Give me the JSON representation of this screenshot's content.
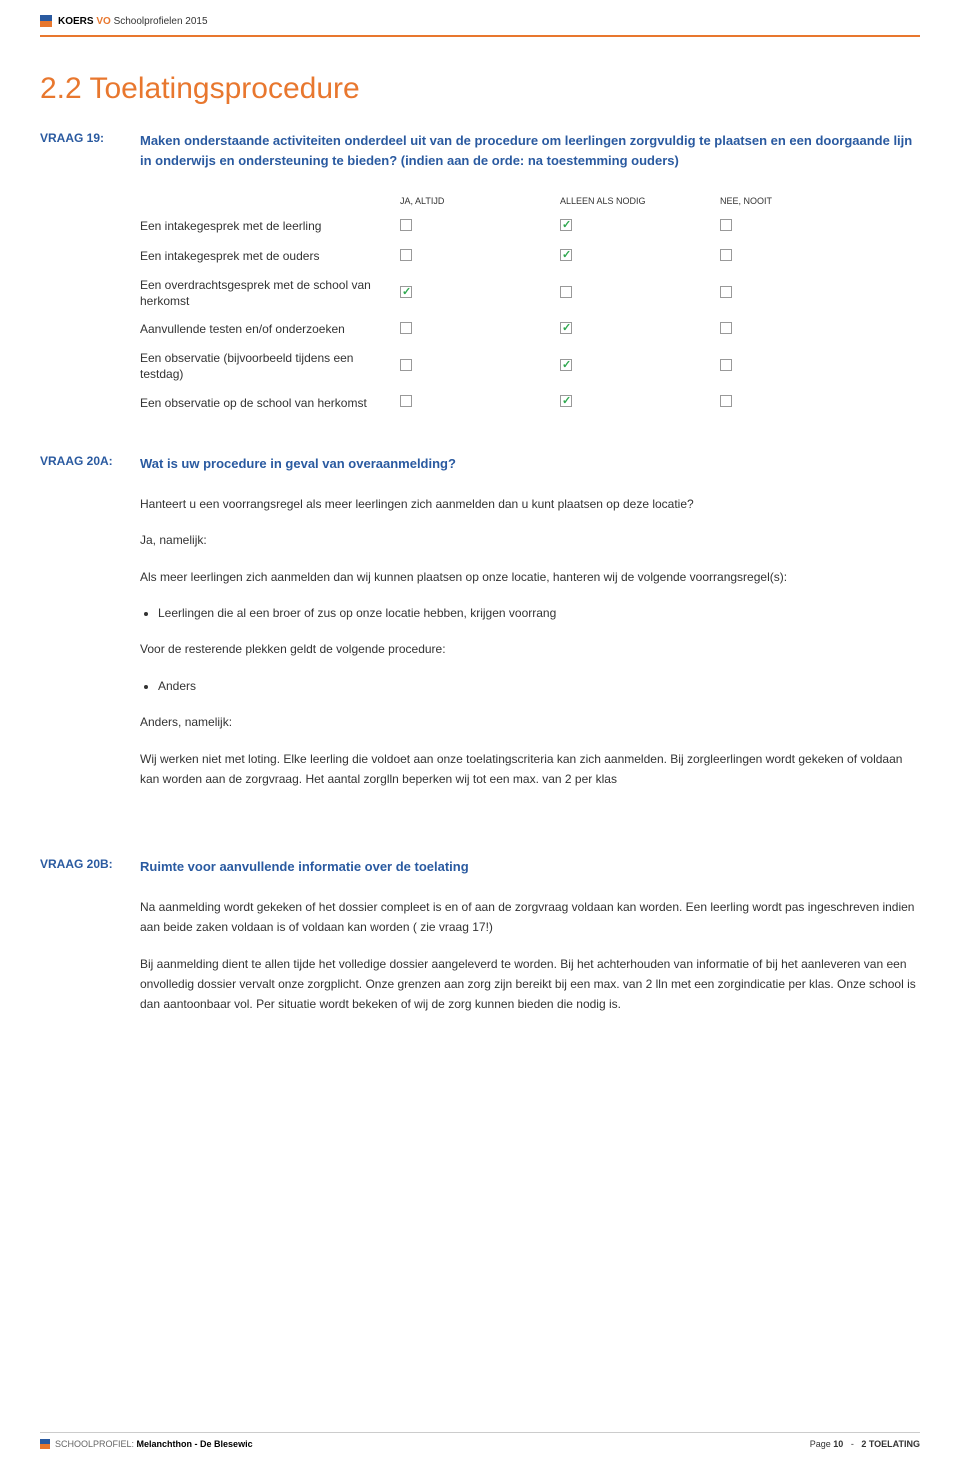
{
  "header": {
    "brand_black": "KOERS",
    "brand_orange": "VO",
    "brand_rest": "Schoolprofielen 2015",
    "icon_colors": {
      "top": "#2a5aa0",
      "bottom": "#e8772e"
    }
  },
  "section_title": "2.2 Toelatingsprocedure",
  "vraag19": {
    "label": "VRAAG 19:",
    "question": "Maken onderstaande activiteiten onderdeel uit van de procedure om leerlingen zorgvuldig te plaatsen en een doorgaande lijn in onderwijs en ondersteuning te bieden? (indien aan de orde: na toestemming ouders)",
    "columns": [
      "JA, ALTIJD",
      "ALLEEN ALS NODIG",
      "NEE, NOOIT"
    ],
    "rows": [
      {
        "label": "Een intakegesprek met de leerling",
        "checks": [
          false,
          true,
          false
        ]
      },
      {
        "label": "Een intakegesprek met de ouders",
        "checks": [
          false,
          true,
          false
        ]
      },
      {
        "label": "Een overdrachtsgesprek met de school van herkomst",
        "checks": [
          true,
          false,
          false
        ]
      },
      {
        "label": "Aanvullende testen en/of onderzoeken",
        "checks": [
          false,
          true,
          false
        ]
      },
      {
        "label": "Een observatie (bijvoorbeeld tijdens een testdag)",
        "checks": [
          false,
          true,
          false
        ]
      },
      {
        "label": "Een observatie op de school van herkomst",
        "checks": [
          false,
          true,
          false
        ]
      }
    ]
  },
  "vraag20a": {
    "label": "VRAAG 20A:",
    "question": "Wat is uw procedure in geval van overaanmelding?",
    "p1": "Hanteert u een voorrangsregel als meer leerlingen zich aanmelden dan u kunt plaatsen op deze locatie?",
    "p2": "Ja, namelijk:",
    "p3": "Als meer leerlingen zich aanmelden dan wij kunnen plaatsen op onze locatie, hanteren wij de volgende voorrangsregel(s):",
    "bullet1": "Leerlingen die al een broer of zus op onze locatie hebben, krijgen voorrang",
    "p4": "Voor de resterende plekken geldt de volgende procedure:",
    "bullet2": "Anders",
    "p5": "Anders, namelijk:",
    "p6": "Wij werken niet met loting. Elke leerling die voldoet aan onze toelatingscriteria kan zich aanmelden. Bij zorgleerlingen wordt gekeken of voldaan kan worden aan de zorgvraag. Het aantal zorglln  beperken wij tot een max. van 2 per klas"
  },
  "vraag20b": {
    "label": "VRAAG 20B:",
    "question": "Ruimte voor aanvullende informatie over de toelating",
    "p1": "Na aanmelding wordt gekeken of het dossier compleet is en of aan de zorgvraag voldaan kan worden. Een leerling wordt pas ingeschreven indien aan beide zaken voldaan is of voldaan kan worden ( zie vraag 17!)",
    "p2": "Bij aanmelding dient te allen tijde het volledige dossier aangeleverd te worden. Bij het achterhouden van informatie of bij het aanleveren van een onvolledig dossier vervalt onze zorgplicht. Onze grenzen aan zorg zijn bereikt bij een max. van 2 lln met een zorgindicatie per klas. Onze school is dan aantoonbaar vol. Per situatie wordt bekeken of wij de zorg kunnen bieden die nodig is."
  },
  "footer": {
    "label": "SCHOOLPROFIEL:",
    "name": "Melanchthon - De Blesewic",
    "page_label": "Page",
    "page_num": "10",
    "sep": "-",
    "chapter": "2 TOELATING"
  }
}
